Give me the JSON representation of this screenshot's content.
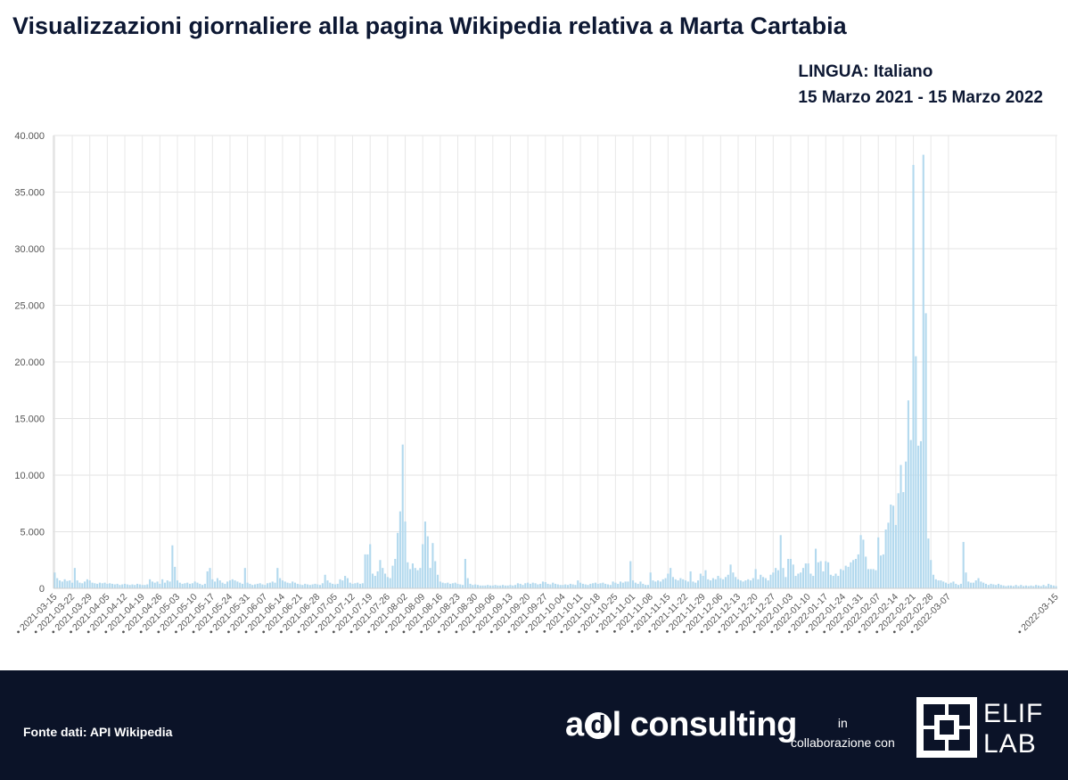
{
  "header": {
    "title": "Visualizzazioni giornaliere alla pagina Wikipedia relativa a Marta Cartabia",
    "language": "LINGUA: Italiano",
    "period": "15 Marzo 2021 - 15 Marzo 2022"
  },
  "footer": {
    "source": "Fonte dati:  API Wikipedia",
    "adl_a": "a",
    "adl_d": "d",
    "adl_rest": "l consulting",
    "collab_in": "in",
    "collab_text": "collaborazione con",
    "elif_line1": "ELIF",
    "elif_line2": "LAB"
  },
  "chart_data": {
    "type": "bar",
    "color": "#b3d9ee",
    "ylim": [
      0,
      40000
    ],
    "yticks": [
      0,
      5000,
      10000,
      15000,
      20000,
      25000,
      30000,
      35000,
      40000
    ],
    "ytick_labels": [
      "0",
      "5.000",
      "10.000",
      "15.000",
      "20.000",
      "25.000",
      "30.000",
      "35.000",
      "40.000"
    ],
    "x_tick_labels": [
      "2021-03-15",
      "2021-03-22",
      "2021-03-29",
      "2021-04-05",
      "2021-04-12",
      "2021-04-19",
      "2021-04-26",
      "2021-05-03",
      "2021-05-10",
      "2021-05-17",
      "2021-05-24",
      "2021-05-31",
      "2021-06-07",
      "2021-06-14",
      "2021-06-21",
      "2021-06-28",
      "2021-07-05",
      "2021-07-12",
      "2021-07-19",
      "2021-07-26",
      "2021-08-02",
      "2021-08-09",
      "2021-08-16",
      "2021-08-23",
      "2021-08-30",
      "2021-09-06",
      "2021-09-13",
      "2021-09-20",
      "2021-09-27",
      "2021-10-04",
      "2021-10-11",
      "2021-10-18",
      "2021-10-25",
      "2021-11-01",
      "2021-11-08",
      "2021-11-15",
      "2021-11-22",
      "2021-11-29",
      "2021-12-06",
      "2021-12-13",
      "2021-12-20",
      "2021-12-27",
      "2022-01-03",
      "2022-01-10",
      "2022-01-17",
      "2022-01-24",
      "2022-01-31",
      "2022-02-07",
      "2022-02-14",
      "2022-02-21",
      "2022-02-28",
      "2022-03-07",
      "2022-03-15"
    ],
    "start_date": "2021-03-15",
    "values": [
      1400,
      900,
      700,
      600,
      800,
      650,
      700,
      500,
      1800,
      700,
      500,
      450,
      600,
      800,
      700,
      500,
      450,
      400,
      500,
      450,
      500,
      400,
      450,
      400,
      350,
      400,
      300,
      350,
      400,
      350,
      300,
      350,
      300,
      400,
      350,
      300,
      300,
      350,
      800,
      600,
      500,
      600,
      400,
      800,
      500,
      700,
      600,
      3800,
      1900,
      700,
      500,
      400,
      450,
      500,
      400,
      450,
      600,
      500,
      400,
      300,
      400,
      1500,
      1800,
      800,
      600,
      900,
      700,
      500,
      400,
      600,
      700,
      800,
      700,
      600,
      500,
      400,
      1800,
      500,
      400,
      300,
      350,
      400,
      450,
      350,
      300,
      450,
      500,
      600,
      500,
      1800,
      900,
      700,
      600,
      500,
      450,
      600,
      500,
      400,
      350,
      300,
      400,
      350,
      300,
      350,
      400,
      350,
      300,
      450,
      1200,
      700,
      500,
      400,
      350,
      400,
      800,
      700,
      1100,
      900,
      500,
      400,
      450,
      500,
      400,
      450,
      3000,
      3000,
      3900,
      1300,
      1100,
      1500,
      2500,
      1800,
      1300,
      1000,
      900,
      2000,
      2600,
      4900,
      6800,
      12700,
      5900,
      2300,
      1700,
      2200,
      1800,
      1600,
      1800,
      3900,
      5900,
      4600,
      1800,
      4000,
      2400,
      1200,
      600,
      500,
      450,
      500,
      400,
      450,
      500,
      400,
      350,
      300,
      2600,
      900,
      400,
      300,
      350,
      300,
      250,
      250,
      250,
      300,
      250,
      250,
      300,
      250,
      250,
      300,
      250,
      250,
      300,
      250,
      300,
      450,
      400,
      300,
      450,
      500,
      400,
      500,
      450,
      350,
      400,
      600,
      550,
      400,
      350,
      500,
      400,
      350,
      300,
      300,
      350,
      300,
      400,
      350,
      300,
      700,
      500,
      400,
      350,
      300,
      400,
      450,
      500,
      400,
      450,
      500,
      400,
      350,
      300,
      600,
      500,
      400,
      600,
      500,
      600,
      600,
      2400,
      700,
      500,
      400,
      600,
      400,
      300,
      300,
      1400,
      700,
      600,
      700,
      600,
      800,
      900,
      1300,
      1800,
      1000,
      800,
      700,
      900,
      800,
      700,
      600,
      1500,
      600,
      500,
      700,
      1300,
      1100,
      1600,
      800,
      700,
      900,
      800,
      1100,
      900,
      800,
      1000,
      1200,
      2100,
      1400,
      1000,
      800,
      700,
      600,
      700,
      800,
      700,
      900,
      1700,
      800,
      1200,
      1000,
      900,
      700,
      1200,
      1400,
      1800,
      1600,
      4700,
      1800,
      1000,
      2600,
      2600,
      2100,
      1100,
      1300,
      1400,
      1800,
      2200,
      2200,
      1300,
      1100,
      3500,
      2300,
      2400,
      1500,
      2400,
      2300,
      1200,
      1100,
      1300,
      1100,
      1700,
      1600,
      2000,
      1900,
      2300,
      2500,
      2600,
      3000,
      4700,
      4300,
      2800,
      1700,
      1700,
      1700,
      1600,
      4500,
      2900,
      3000,
      5200,
      5800,
      7400,
      7300,
      5600,
      8400,
      10900,
      8500,
      11200,
      16600,
      13100,
      37400,
      20500,
      12600,
      13000,
      38300,
      24300,
      4400,
      2500,
      1200,
      800,
      700,
      700,
      600,
      500,
      400,
      500,
      600,
      400,
      300,
      400,
      4100,
      1400,
      600,
      500,
      500,
      700,
      900,
      600,
      500,
      400,
      300,
      400,
      350,
      300,
      400,
      300,
      250,
      200,
      250,
      250,
      200,
      300,
      200,
      300,
      200,
      250,
      200,
      250,
      200,
      300,
      250,
      200,
      300,
      200,
      400,
      300,
      250,
      200
    ]
  }
}
